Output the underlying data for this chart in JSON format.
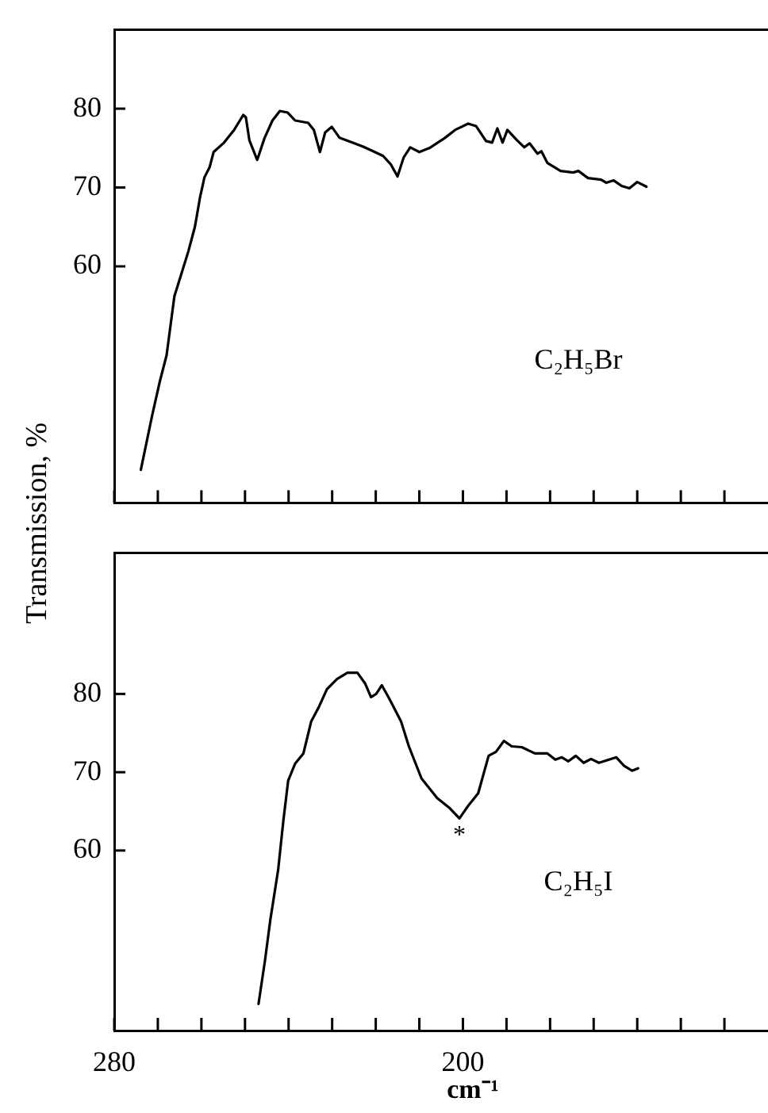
{
  "chart_data": [
    {
      "type": "line",
      "ylabel": "Transmission, %",
      "xlim": [
        280,
        130
      ],
      "ylim": [
        30,
        90
      ],
      "xticks": [
        {
          "value": 280,
          "label": null
        },
        {
          "value": 270,
          "label": null
        },
        {
          "value": 260,
          "label": null
        },
        {
          "value": 250,
          "label": null
        },
        {
          "value": 240,
          "label": null
        },
        {
          "value": 230,
          "label": null
        },
        {
          "value": 220,
          "label": null
        },
        {
          "value": 210,
          "label": null
        },
        {
          "value": 200,
          "label": null
        },
        {
          "value": 190,
          "label": null
        },
        {
          "value": 180,
          "label": null
        },
        {
          "value": 170,
          "label": null
        },
        {
          "value": 160,
          "label": null
        },
        {
          "value": 150,
          "label": null
        },
        {
          "value": 140,
          "label": null
        }
      ],
      "yticks": [
        60,
        70,
        80
      ],
      "tick_labels": "y",
      "grid": false,
      "legend": false,
      "series": [
        {
          "name": "C₂H₅Br",
          "color": "#000000",
          "x": [
            273.9,
            271.3,
            269.5,
            268.0,
            266.2,
            264.8,
            263.0,
            261.5,
            260.3,
            259.3,
            258.1,
            257.2,
            254.8,
            252.5,
            250.4,
            249.8,
            249.0,
            247.2,
            245.5,
            243.7,
            242.0,
            240.2,
            238.5,
            235.5,
            234.2,
            232.8,
            231.6,
            230.1,
            228.3,
            225.4,
            223.0,
            220.6,
            218.3,
            216.5,
            215.0,
            213.6,
            212.1,
            210.0,
            207.7,
            204.1,
            201.8,
            198.8,
            197.0,
            194.7,
            193.3,
            192.1,
            190.9,
            189.8,
            187.6,
            185.9,
            184.7,
            182.9,
            182.0,
            180.6,
            177.6,
            174.7,
            173.5,
            171.3,
            168.3,
            167.1,
            165.4,
            163.6,
            161.8,
            160.0,
            157.9
          ],
          "values": [
            34.2,
            41.1,
            45.5,
            48.7,
            56.2,
            58.7,
            61.9,
            65.0,
            68.8,
            71.3,
            72.6,
            74.5,
            75.7,
            77.3,
            79.2,
            78.9,
            76.0,
            73.5,
            76.3,
            78.5,
            79.7,
            79.5,
            78.5,
            78.2,
            77.3,
            74.5,
            77.0,
            77.7,
            76.3,
            75.7,
            75.2,
            74.6,
            74.0,
            72.9,
            71.4,
            73.8,
            75.1,
            74.5,
            75.0,
            76.3,
            77.3,
            78.1,
            77.8,
            75.9,
            75.7,
            77.5,
            75.7,
            77.3,
            76.0,
            75.1,
            75.6,
            74.3,
            74.6,
            73.1,
            72.1,
            71.9,
            72.1,
            71.2,
            71.0,
            70.6,
            70.9,
            70.2,
            69.9,
            70.7,
            70.1
          ]
        }
      ]
    },
    {
      "type": "line",
      "xlabel": "cm⁻¹",
      "xlim": [
        280,
        130
      ],
      "ylim": [
        37,
        98
      ],
      "xticks": [
        280,
        {
          "value": 270,
          "label": null
        },
        {
          "value": 260,
          "label": null
        },
        {
          "value": 250,
          "label": null
        },
        {
          "value": 240,
          "label": null
        },
        {
          "value": 230,
          "label": null
        },
        {
          "value": 220,
          "label": null
        },
        {
          "value": 210,
          "label": null
        },
        200,
        {
          "value": 190,
          "label": null
        },
        {
          "value": 180,
          "label": null
        },
        {
          "value": 170,
          "label": null
        },
        {
          "value": 160,
          "label": null
        },
        {
          "value": 150,
          "label": null
        },
        {
          "value": 140,
          "label": null
        }
      ],
      "yticks": [
        60,
        70,
        80
      ],
      "grid": false,
      "legend": false,
      "annotations": [
        {
          "text": "*",
          "x": 200.8,
          "y": 64.1
        }
      ],
      "series": [
        {
          "name": "C₂H₅I",
          "color": "#000000",
          "x": [
            246.9,
            245.4,
            244.2,
            242.4,
            241.2,
            240.1,
            238.5,
            236.6,
            234.8,
            233.0,
            231.2,
            228.9,
            226.5,
            224.2,
            222.4,
            221.1,
            219.9,
            218.6,
            216.9,
            214.2,
            212.4,
            209.5,
            205.9,
            203.0,
            200.8,
            198.8,
            196.5,
            194.1,
            192.4,
            190.6,
            188.8,
            186.5,
            183.5,
            180.6,
            178.8,
            177.3,
            175.8,
            174.1,
            172.3,
            170.6,
            168.8,
            166.5,
            164.8,
            163.0,
            161.2,
            159.8
          ],
          "values": [
            40.4,
            46.0,
            51.1,
            57.5,
            63.8,
            68.9,
            71.1,
            72.4,
            76.5,
            78.4,
            80.6,
            81.9,
            82.7,
            82.7,
            81.3,
            79.6,
            80.0,
            81.1,
            79.4,
            76.5,
            73.3,
            69.2,
            66.7,
            65.4,
            64.1,
            65.7,
            67.3,
            72.1,
            72.6,
            74.0,
            73.3,
            73.2,
            72.4,
            72.4,
            71.6,
            71.9,
            71.4,
            72.1,
            71.2,
            71.7,
            71.2,
            71.6,
            71.9,
            70.8,
            70.2,
            70.5
          ]
        }
      ]
    }
  ]
}
